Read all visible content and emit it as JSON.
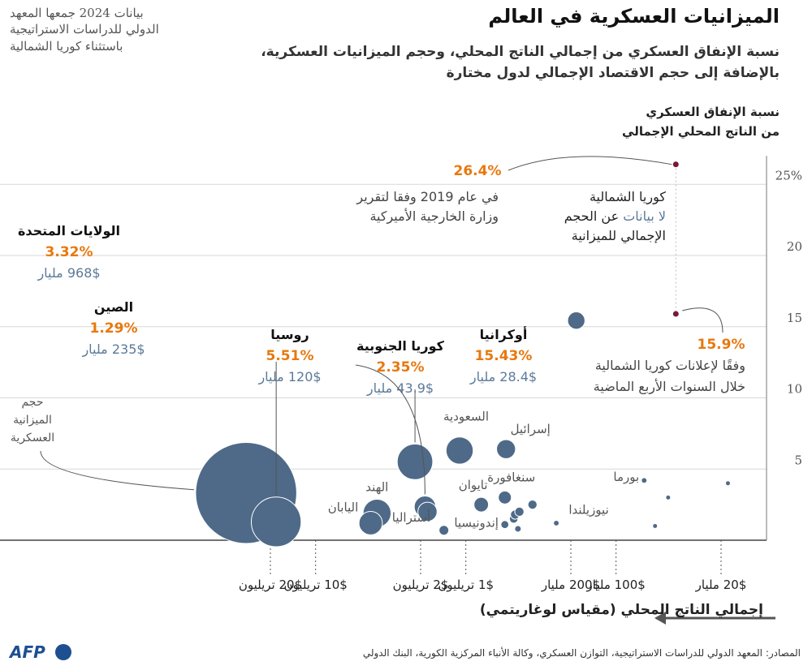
{
  "header": {
    "title": "الميزانيات العسكرية في العالم",
    "subtitle": "نسبة الإنفاق العسكري من إجمالي الناتج المحلي، وحجم الميزانيات العسكرية، بالإضافة إلى حجم الاقتصاد الإجمالي لدول مختارة",
    "note_line1": "بيانات 2024 جمعها المعهد",
    "note_line2": "الدولي للدراسات الاستراتيجية",
    "note_line3": "باستثناء كوريا الشمالية"
  },
  "footer": {
    "source": "المصادر: المعهد الدولي للدراسات الاستراتيجية، التوازن العسكري، وكالة الأنباء المركزية الكورية، البنك الدولي",
    "logo_text": "AFP"
  },
  "colors": {
    "bubble": "#4e6a88",
    "highlight": "#e8780e",
    "north_korea": "#7a1838",
    "budget_text": "#5c7a99",
    "grid": "#d7d7d7"
  },
  "chart_data": {
    "type": "scatter",
    "title": "الميزانيات العسكرية في العالم",
    "ylabel_line1": "نسبة الإنفاق العسكري",
    "ylabel_line2": "من الناتج المحلي الإجمالي",
    "xlabel": "إجمالي الناتج المحلي (مقياس لوغاريتمي)",
    "x_scale": "log",
    "x_direction": "reversed",
    "y_ticks": [
      {
        "value": 5,
        "label": "5"
      },
      {
        "value": 10,
        "label": "10"
      },
      {
        "value": 15,
        "label": "15"
      },
      {
        "value": 20,
        "label": "20"
      },
      {
        "value": 25,
        "label": "25%"
      }
    ],
    "ylim": [
      0,
      27
    ],
    "x_ticks": [
      {
        "value": 20,
        "label": "20$ مليار"
      },
      {
        "value": 100,
        "label": "100$ مليار"
      },
      {
        "value": 200,
        "label": "200$ مليار"
      },
      {
        "value": 1000,
        "label": "1$ تريليون"
      },
      {
        "value": 2000,
        "label": "2$ تريليون"
      },
      {
        "value": 10000,
        "label": "10$ تريليون"
      },
      {
        "value": 20000,
        "label": "20$ تريليون"
      }
    ],
    "bubble_size_legend": "حجم الميزانية العسكرية",
    "points": [
      {
        "name": "الولايات المتحدة",
        "gdp": 29000,
        "pct": 3.32,
        "budget": 968,
        "pct_label": "3.32%",
        "budget_label": "968$ مليار"
      },
      {
        "name": "الصين",
        "gdp": 18300,
        "pct": 1.29,
        "budget": 235,
        "pct_label": "1.29%",
        "budget_label": "235$ مليار"
      },
      {
        "name": "روسيا",
        "gdp": 2180,
        "pct": 5.51,
        "budget": 120,
        "pct_label": "5.51%",
        "budget_label": "120$ مليار"
      },
      {
        "name": "كوريا الجنوبية",
        "gdp": 1870,
        "pct": 2.35,
        "budget": 43.9,
        "pct_label": "2.35%",
        "budget_label": "43.9$ مليار"
      },
      {
        "name": "أوكرانيا",
        "gdp": 184,
        "pct": 15.43,
        "budget": 28.4,
        "pct_label": "15.43%",
        "budget_label": "28.4$ مليار"
      },
      {
        "name": "الهند",
        "gdp": 3900,
        "pct": 1.9,
        "budget": 74
      },
      {
        "name": "اليابان",
        "gdp": 4300,
        "pct": 1.2,
        "budget": 52
      },
      {
        "name": "أستراليا",
        "gdp": 1800,
        "pct": 2.0,
        "budget": 35
      },
      {
        "name": "السعودية",
        "gdp": 1100,
        "pct": 6.3,
        "budget": 70
      },
      {
        "name": "إسرائيل",
        "gdp": 540,
        "pct": 6.4,
        "budget": 34
      },
      {
        "name": "تايوان",
        "gdp": 790,
        "pct": 2.5,
        "budget": 20
      },
      {
        "name": "إندونيسيا",
        "gdp": 1400,
        "pct": 0.7,
        "budget": 9
      },
      {
        "name": "سنغافورة",
        "gdp": 550,
        "pct": 3.0,
        "budget": 16
      },
      {
        "name": "نيوزيلندا",
        "gdp": 250,
        "pct": 1.2,
        "budget": 3
      },
      {
        "name": "بورما",
        "gdp": 65,
        "pct": 4.2,
        "budget": 3
      },
      {
        "name": "",
        "gdp": 550,
        "pct": 1.1,
        "budget": 6
      },
      {
        "name": "",
        "gdp": 480,
        "pct": 1.5,
        "budget": 7
      },
      {
        "name": "",
        "gdp": 470,
        "pct": 1.8,
        "budget": 8
      },
      {
        "name": "",
        "gdp": 440,
        "pct": 2.0,
        "budget": 8
      },
      {
        "name": "",
        "gdp": 450,
        "pct": 0.8,
        "budget": 4
      },
      {
        "name": "",
        "gdp": 360,
        "pct": 2.5,
        "budget": 8
      },
      {
        "name": "",
        "gdp": 45,
        "pct": 3.0,
        "budget": 1.5
      },
      {
        "name": "",
        "gdp": 55,
        "pct": 1.0,
        "budget": 0.6
      },
      {
        "name": "",
        "gdp": 18,
        "pct": 4.0,
        "budget": 0.7
      }
    ],
    "north_korea": {
      "name": "كوريا الشمالية",
      "gdp": 40,
      "pct_report": 26.4,
      "pct_announced": 15.9,
      "no_data_part1": "لا بيانات",
      "no_data_part2": " عن الحجم",
      "no_data_line2": "الإجمالي للميزانية",
      "report_label": "26.4%",
      "report_note_line1": "في عام 2019 وفقا لتقرير",
      "report_note_line2": "وزارة الخارجية الأميركية",
      "announced_label": "15.9%",
      "announced_note_line1": "وفقًا لإعلانات كوريا الشمالية",
      "announced_note_line2": "خلال السنوات الأربع الماضية"
    }
  }
}
